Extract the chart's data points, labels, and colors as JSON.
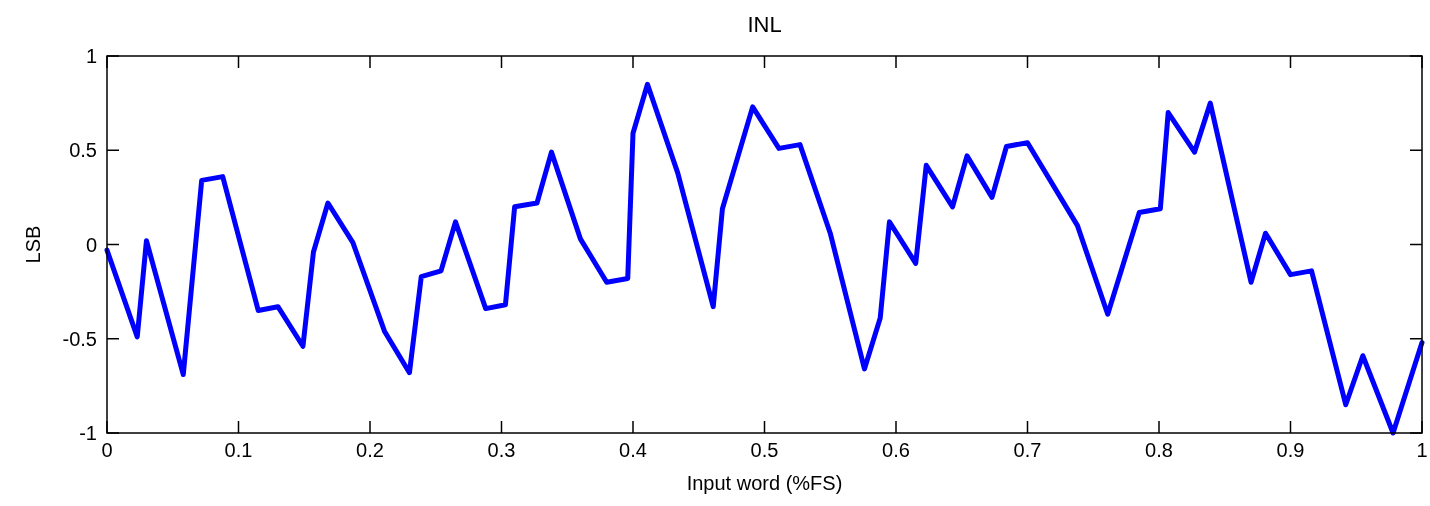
{
  "chart_data": {
    "type": "line",
    "title": "INL",
    "xlabel": "Input word (%FS)",
    "ylabel": "LSB",
    "xlim": [
      0,
      1
    ],
    "ylim": [
      -1,
      1
    ],
    "xticks": [
      0,
      0.1,
      0.2,
      0.3,
      0.4,
      0.5,
      0.6,
      0.7,
      0.8,
      0.9,
      1
    ],
    "yticks": [
      -1,
      -0.5,
      0,
      0.5,
      1
    ],
    "grid": false,
    "marker": "none",
    "line_style": "solid",
    "series": [
      {
        "color": "#0000ff",
        "x": [
          0,
          0.023,
          0.03,
          0.058,
          0.072,
          0.088,
          0.115,
          0.13,
          0.149,
          0.157,
          0.168,
          0.187,
          0.211,
          0.23,
          0.239,
          0.254,
          0.265,
          0.288,
          0.303,
          0.31,
          0.327,
          0.338,
          0.36,
          0.38,
          0.396,
          0.4,
          0.411,
          0.434,
          0.461,
          0.468,
          0.491,
          0.511,
          0.527,
          0.55,
          0.576,
          0.588,
          0.595,
          0.615,
          0.623,
          0.643,
          0.654,
          0.673,
          0.684,
          0.7,
          0.738,
          0.761,
          0.785,
          0.801,
          0.807,
          0.827,
          0.839,
          0.87,
          0.881,
          0.9,
          0.916,
          0.942,
          0.955,
          0.978,
          1
        ],
        "values": [
          -0.03,
          -0.49,
          0.02,
          -0.69,
          0.34,
          0.36,
          -0.35,
          -0.33,
          -0.54,
          -0.04,
          0.22,
          0.01,
          -0.46,
          -0.68,
          -0.17,
          -0.14,
          0.12,
          -0.34,
          -0.32,
          0.2,
          0.22,
          0.49,
          0.03,
          -0.2,
          -0.18,
          0.59,
          0.85,
          0.38,
          -0.33,
          0.19,
          0.73,
          0.51,
          0.53,
          0.06,
          -0.66,
          -0.39,
          0.12,
          -0.1,
          0.42,
          0.2,
          0.47,
          0.25,
          0.52,
          0.54,
          0.1,
          -0.37,
          0.17,
          0.19,
          0.7,
          0.49,
          0.75,
          -0.2,
          0.06,
          -0.16,
          -0.14,
          -0.85,
          -0.59,
          -1,
          -0.52
        ]
      }
    ]
  }
}
